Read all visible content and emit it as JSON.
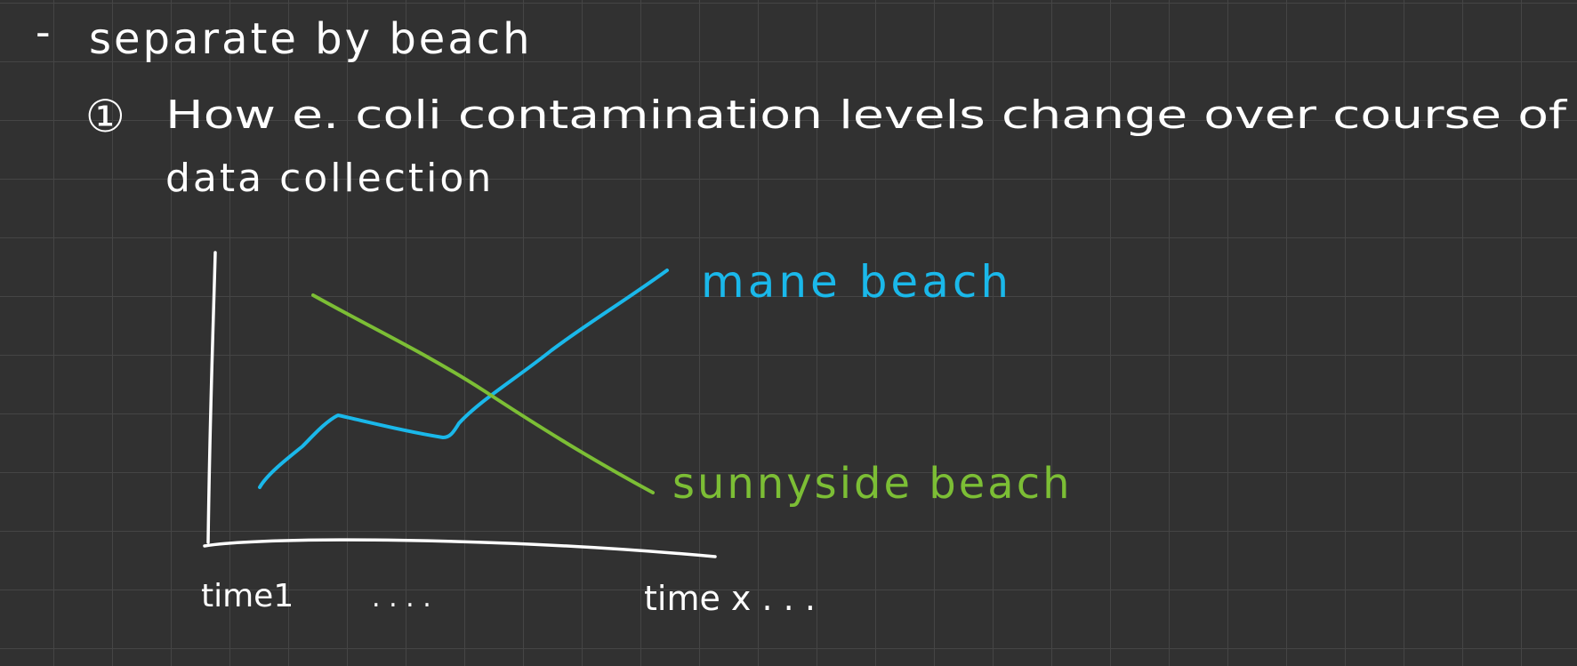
{
  "notes": {
    "bullet": "-",
    "heading": "separate by beach",
    "item_number": "①",
    "question_line1": "How e. coli contamination levels change over course of",
    "question_line2": "data collection"
  },
  "sketch": {
    "x_tick_start": "time1",
    "x_tick_dots": ". . . .",
    "x_tick_end": "time x . . .",
    "series": [
      {
        "label": "mane beach",
        "color": "#1AB8EA"
      },
      {
        "label": "sunnyside beach",
        "color": "#7CBE35"
      }
    ],
    "axis_color": "#FFFFFF",
    "text_color": "#FFFFFF",
    "background": "#313131",
    "grid_color": "#454545"
  }
}
